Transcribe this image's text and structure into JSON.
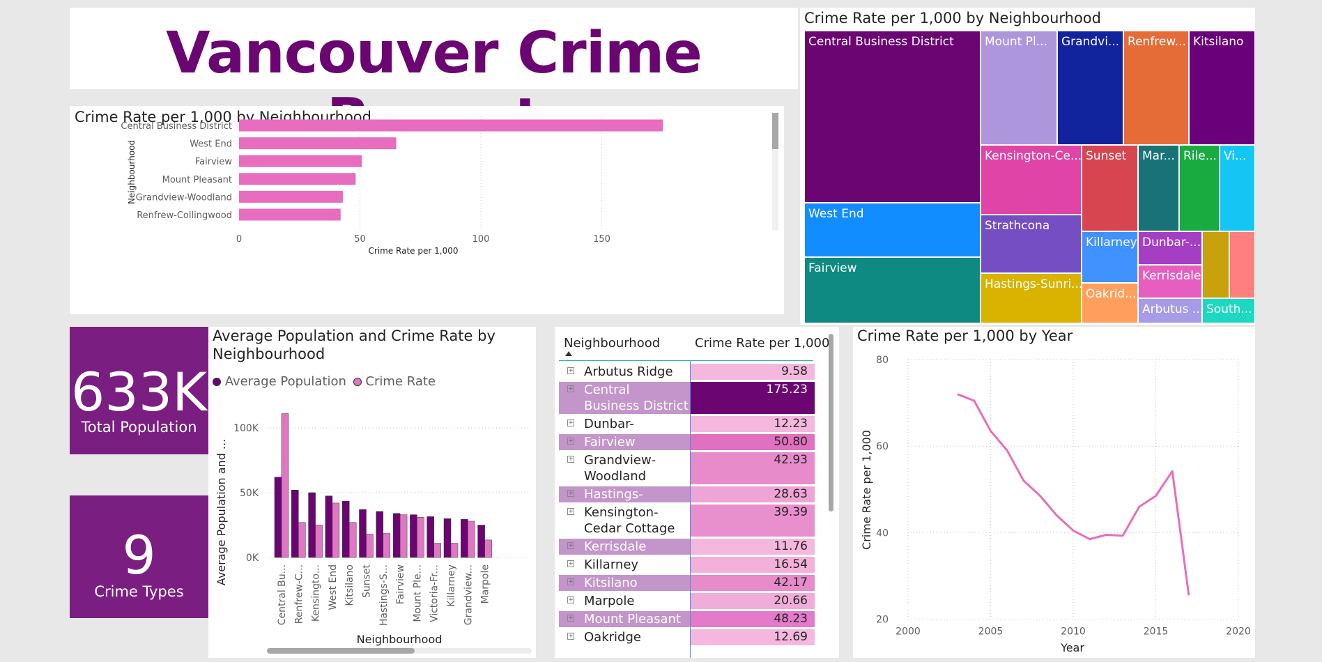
{
  "title": "Vancouver Crime Report",
  "colors": {
    "purple": "#6A0572",
    "kpi_bg": "#7B1E82",
    "pink": "#E86DBE",
    "bar_dark": "#6A0572",
    "bar_pink": "#E077C2"
  },
  "bar_chart": {
    "title": "Crime Rate per 1,000 by Neighbourhood",
    "ylabel": "Neighbourhood",
    "xlabel": "Crime Rate per 1,000",
    "ticks": [
      "0",
      "50",
      "100",
      "150"
    ]
  },
  "treemap": {
    "title": "Crime Rate per 1,000 by Neighbourhood",
    "labels": [
      "Central Business District",
      "West End",
      "Fairview",
      "Mount Pl...",
      "Grandvi...",
      "Renfrew...",
      "Kitsilano",
      "Kensington-Ce...",
      "Sunset",
      "Mar...",
      "Rile...",
      "Vi...",
      "Strathcona",
      "Hastings-Sunri...",
      "Killarney",
      "Dunbar-...",
      "Kerrisdale",
      "Oakrid...",
      "Arbutus ...",
      "South..."
    ]
  },
  "kpis": [
    {
      "value": "633K",
      "label": "Total Population"
    },
    {
      "value": "9",
      "label": "Crime Types"
    }
  ],
  "combo_chart": {
    "title_line1": "Average Population and Crime Rate by",
    "title_line2": "Neighbourhood",
    "legend": [
      "Average Population",
      "Crime Rate"
    ],
    "ylabel": "Average Population and ...",
    "xlabel": "Neighbourhood",
    "yticks": [
      "0K",
      "50K",
      "100K"
    ]
  },
  "table": {
    "headers": [
      "Neighbourhood",
      "Crime Rate per 1,000"
    ],
    "rows": [
      {
        "name": "Arbutus Ridge",
        "value": "9.58"
      },
      {
        "name": "Central Business District",
        "value": "175.23"
      },
      {
        "name": "Dunbar-",
        "value": "12.23"
      },
      {
        "name": "Fairview",
        "value": "50.80"
      },
      {
        "name": "Grandview-Woodland",
        "value": "42.93"
      },
      {
        "name": "Hastings-Sunrise",
        "value": "28.63"
      },
      {
        "name": "Kensington-Cedar Cottage",
        "value": "39.39"
      },
      {
        "name": "Kerrisdale",
        "value": "11.76"
      },
      {
        "name": "Killarney",
        "value": "16.54"
      },
      {
        "name": "Kitsilano",
        "value": "42.17"
      },
      {
        "name": "Marpole",
        "value": "20.66"
      },
      {
        "name": "Mount Pleasant",
        "value": "48.23"
      },
      {
        "name": "Oakridge",
        "value": "12.69"
      }
    ]
  },
  "line_chart": {
    "title": "Crime Rate per 1,000 by Year",
    "ylabel": "Crime Rate per 1,000",
    "xlabel": "Year",
    "yticks": [
      "20",
      "40",
      "60",
      "80"
    ],
    "xticks": [
      "2000",
      "2005",
      "2010",
      "2015",
      "2020"
    ]
  },
  "chart_data": [
    {
      "type": "bar",
      "orientation": "horizontal",
      "title": "Crime Rate per 1,000 by Neighbourhood",
      "xlabel": "Crime Rate per 1,000",
      "ylabel": "Neighbourhood",
      "categories": [
        "Central Business District",
        "West End",
        "Fairview",
        "Mount Pleasant",
        "Grandview-Woodland",
        "Renfrew-Collingwood"
      ],
      "values": [
        175.23,
        65,
        50.8,
        48.23,
        42.93,
        42
      ],
      "xlim": [
        0,
        185
      ]
    },
    {
      "type": "treemap",
      "title": "Crime Rate per 1,000 by Neighbourhood",
      "categories": [
        "Central Business District",
        "West End",
        "Fairview",
        "Mount Pleasant",
        "Grandview-Woodland",
        "Renfrew-Collingwood",
        "Kitsilano",
        "Kensington-Cedar Cottage",
        "Sunset",
        "Marpole",
        "Riley Park",
        "Victoria-Fraserview",
        "Strathcona",
        "Hastings-Sunrise",
        "Killarney",
        "Dunbar-",
        "Kerrisdale",
        "Oakridge",
        "Arbutus Ridge",
        "South Cambie"
      ],
      "values": [
        175.23,
        65,
        50.8,
        48.23,
        42.93,
        42,
        42.17,
        39.39,
        32,
        20.66,
        19,
        17,
        30,
        28.63,
        16.54,
        12.23,
        11.76,
        12.69,
        9.58,
        9
      ],
      "colors": [
        "#6A0572",
        "#118DFF",
        "#0E8A82",
        "#AE96DC",
        "#12239E",
        "#E66C37",
        "#6B007B",
        "#E044A7",
        "#D64550",
        "#197278",
        "#1AAB40",
        "#15C6F4",
        "#744EC2",
        "#D9B300",
        "#4092FF",
        "#A43FC4",
        "#E65FC0",
        "#FF9F5B",
        "#A69BE6",
        "#1ED9C2",
        "#C8A10C",
        "#FF7F7F"
      ]
    },
    {
      "type": "bar",
      "title": "Average Population and Crime Rate by Neighbourhood",
      "xlabel": "Neighbourhood",
      "ylabel": "Average Population and ...",
      "categories": [
        "Central Bu...",
        "Renfrew-C...",
        "Kensingto...",
        "West End",
        "Kitsilano",
        "Sunset",
        "Hastings-S...",
        "Fairview",
        "Mount Ple...",
        "Victoria-Fr...",
        "Killarney",
        "Grandview...",
        "Marpole"
      ],
      "series": [
        {
          "name": "Average Population",
          "values": [
            62000,
            52000,
            50000,
            47500,
            43500,
            37000,
            35500,
            34000,
            33000,
            31500,
            30000,
            29500,
            25000
          ]
        },
        {
          "name": "Crime Rate",
          "values": [
            111000,
            27000,
            25000,
            42000,
            27000,
            18000,
            18500,
            33000,
            31000,
            11000,
            11000,
            28000,
            13500
          ]
        }
      ],
      "ylim": [
        0,
        120000
      ]
    },
    {
      "type": "line",
      "title": "Crime Rate per 1,000 by Year",
      "xlabel": "Year",
      "ylabel": "Crime Rate per 1,000",
      "x": [
        2003,
        2004,
        2005,
        2006,
        2007,
        2008,
        2009,
        2010,
        2011,
        2012,
        2013,
        2014,
        2015,
        2016,
        2017
      ],
      "values": [
        72,
        70.5,
        63.5,
        59,
        52,
        48.5,
        44,
        40.5,
        38.5,
        39.5,
        39.3,
        46,
        48.5,
        54.2,
        25.5
      ],
      "xlim": [
        2000,
        2020
      ],
      "ylim": [
        20,
        80
      ]
    }
  ]
}
